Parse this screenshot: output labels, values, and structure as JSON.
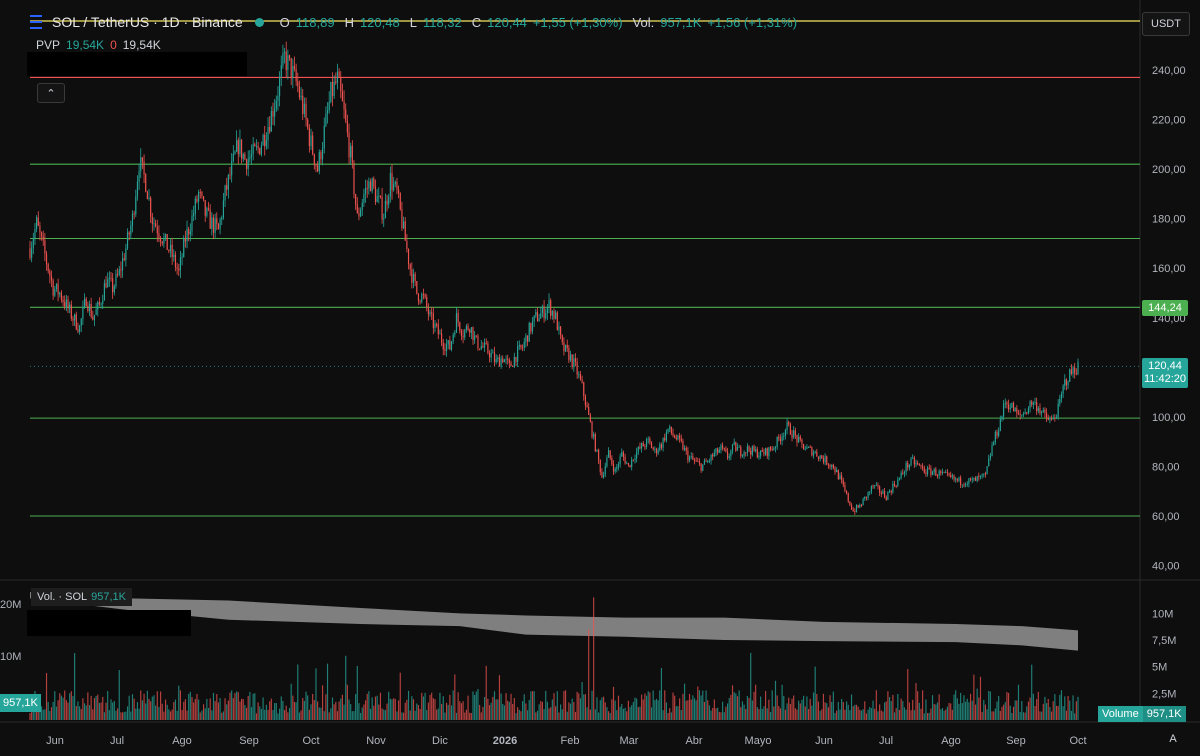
{
  "header": {
    "symbol": "SOL / TetherUS · 1D · Binance",
    "open_label": "O",
    "open": "118,89",
    "high_label": "H",
    "high": "120,48",
    "low_label": "L",
    "low": "118,32",
    "close_label": "C",
    "close": "120,44",
    "change": "+1,55 (+1,30%)",
    "vol_label": "Vol.",
    "vol": "957,1K",
    "vol_change": "+1,56 (+1,31%)",
    "icon": "menu-icon"
  },
  "pvp": {
    "label": "PVP",
    "v1": "19,54K",
    "v2": "0",
    "v3": "19,54K"
  },
  "currency": "USDT",
  "collapse_glyph": "⌃",
  "price_tag": {
    "current": "120,44",
    "countdown": "11:42:20",
    "level": "144,24"
  },
  "volume_pane": {
    "title": "Vol. · SOL",
    "value": "957,1K",
    "left_value": "957,1K",
    "tag_label": "Volume",
    "tag_value": "957,1K",
    "left_axis": [
      "20M",
      "10M"
    ],
    "axis": [
      "10M",
      "7,5M",
      "5M",
      "2,5M"
    ]
  },
  "auto_label": "A",
  "colors": {
    "up": "#26a69a",
    "down": "#ef5350",
    "support": "#4caf50",
    "resistance": "#ef5350",
    "top_line": "#f5e663",
    "ma_band": "#8c8c8c"
  },
  "chart_data": {
    "type": "candlestick",
    "title": "SOL / TetherUS · 1D · Binance",
    "ylim": [
      40,
      250
    ],
    "yticks": [
      240,
      220,
      200,
      180,
      160,
      140,
      100,
      80,
      60,
      40
    ],
    "ytick_labels": [
      "240,00",
      "220,00",
      "200,00",
      "180,00",
      "160,00",
      "140,00",
      "100,00",
      "80,00",
      "60,00",
      "40,00"
    ],
    "xticks": [
      "Jun",
      "Jul",
      "Ago",
      "Sep",
      "Oct",
      "Nov",
      "Dic",
      "2026",
      "Feb",
      "Mar",
      "Abr",
      "Mayo",
      "Jun",
      "Jul",
      "Ago",
      "Sep",
      "Oct"
    ],
    "horizontal_lines": [
      {
        "price": 237,
        "color": "red"
      },
      {
        "price": 202,
        "color": "green"
      },
      {
        "price": 172,
        "color": "green"
      },
      {
        "price": 144.24,
        "color": "green"
      },
      {
        "price": 99.5,
        "color": "green"
      },
      {
        "price": 60,
        "color": "green"
      }
    ],
    "price_path": [
      [
        0,
        168
      ],
      [
        4,
        178
      ],
      [
        8,
        168
      ],
      [
        14,
        152
      ],
      [
        18,
        150
      ],
      [
        22,
        145
      ],
      [
        26,
        140
      ],
      [
        30,
        136
      ],
      [
        34,
        148
      ],
      [
        38,
        140
      ],
      [
        42,
        145
      ],
      [
        46,
        155
      ],
      [
        50,
        152
      ],
      [
        54,
        158
      ],
      [
        58,
        168
      ],
      [
        62,
        180
      ],
      [
        66,
        203
      ],
      [
        70,
        195
      ],
      [
        74,
        180
      ],
      [
        78,
        175
      ],
      [
        82,
        170
      ],
      [
        86,
        165
      ],
      [
        90,
        158
      ],
      [
        94,
        172
      ],
      [
        98,
        180
      ],
      [
        102,
        190
      ],
      [
        106,
        182
      ],
      [
        110,
        178
      ],
      [
        114,
        175
      ],
      [
        118,
        190
      ],
      [
        122,
        200
      ],
      [
        126,
        210
      ],
      [
        130,
        204
      ],
      [
        134,
        205
      ],
      [
        138,
        208
      ],
      [
        142,
        214
      ],
      [
        146,
        222
      ],
      [
        150,
        232
      ],
      [
        154,
        245
      ],
      [
        158,
        240
      ],
      [
        162,
        233
      ],
      [
        166,
        222
      ],
      [
        170,
        210
      ],
      [
        174,
        200
      ],
      [
        178,
        215
      ],
      [
        182,
        230
      ],
      [
        186,
        236
      ],
      [
        190,
        222
      ],
      [
        194,
        205
      ],
      [
        198,
        180
      ],
      [
        202,
        190
      ],
      [
        206,
        195
      ],
      [
        210,
        188
      ],
      [
        214,
        182
      ],
      [
        218,
        196
      ],
      [
        222,
        190
      ],
      [
        226,
        175
      ],
      [
        230,
        160
      ],
      [
        234,
        150
      ],
      [
        238,
        148
      ],
      [
        242,
        140
      ],
      [
        246,
        135
      ],
      [
        250,
        130
      ],
      [
        254,
        128
      ],
      [
        258,
        140
      ],
      [
        262,
        134
      ],
      [
        266,
        137
      ],
      [
        270,
        130
      ],
      [
        274,
        128
      ],
      [
        278,
        126
      ],
      [
        282,
        122
      ],
      [
        286,
        124
      ],
      [
        290,
        120
      ],
      [
        294,
        125
      ],
      [
        298,
        128
      ],
      [
        302,
        135
      ],
      [
        306,
        140
      ],
      [
        310,
        142
      ],
      [
        314,
        145
      ],
      [
        318,
        140
      ],
      [
        322,
        128
      ],
      [
        326,
        125
      ],
      [
        330,
        120
      ],
      [
        334,
        112
      ],
      [
        338,
        100
      ],
      [
        342,
        88
      ],
      [
        346,
        76
      ],
      [
        350,
        85
      ],
      [
        354,
        78
      ],
      [
        358,
        85
      ],
      [
        362,
        80
      ],
      [
        366,
        85
      ],
      [
        370,
        88
      ],
      [
        374,
        90
      ],
      [
        378,
        86
      ],
      [
        382,
        89
      ],
      [
        386,
        95
      ],
      [
        390,
        92
      ],
      [
        394,
        89
      ],
      [
        398,
        84
      ],
      [
        402,
        82
      ],
      [
        406,
        80
      ],
      [
        410,
        82
      ],
      [
        414,
        85
      ],
      [
        418,
        87
      ],
      [
        422,
        84
      ],
      [
        426,
        88
      ],
      [
        430,
        86
      ],
      [
        434,
        87
      ],
      [
        438,
        86
      ],
      [
        442,
        85
      ],
      [
        446,
        86
      ],
      [
        450,
        88
      ],
      [
        454,
        92
      ],
      [
        458,
        96
      ],
      [
        462,
        93
      ],
      [
        466,
        89
      ],
      [
        470,
        87
      ],
      [
        474,
        86
      ],
      [
        478,
        84
      ],
      [
        482,
        82
      ],
      [
        486,
        80
      ],
      [
        490,
        75
      ],
      [
        494,
        68
      ],
      [
        498,
        62
      ],
      [
        502,
        64
      ],
      [
        506,
        68
      ],
      [
        510,
        72
      ],
      [
        514,
        70
      ],
      [
        518,
        68
      ],
      [
        522,
        72
      ],
      [
        526,
        75
      ],
      [
        530,
        80
      ],
      [
        534,
        82
      ],
      [
        538,
        80
      ],
      [
        542,
        78
      ],
      [
        546,
        78
      ],
      [
        550,
        77
      ],
      [
        554,
        76
      ],
      [
        558,
        75
      ],
      [
        562,
        74
      ],
      [
        566,
        74
      ],
      [
        570,
        74
      ],
      [
        574,
        75
      ],
      [
        578,
        76
      ],
      [
        582,
        88
      ],
      [
        586,
        96
      ],
      [
        590,
        106
      ],
      [
        594,
        104
      ],
      [
        598,
        100
      ],
      [
        602,
        102
      ],
      [
        606,
        106
      ],
      [
        610,
        104
      ],
      [
        614,
        100
      ],
      [
        618,
        98
      ],
      [
        622,
        103
      ],
      [
        626,
        114
      ],
      [
        630,
        118
      ],
      [
        634,
        120.44
      ]
    ],
    "path_note_x": "x is trading-day index 0..634; y is price in USDT",
    "volume": {
      "ylim": [
        0,
        12
      ],
      "unit": "M",
      "ma_band_upper": [
        [
          0,
          12
        ],
        [
          60,
          11.4
        ],
        [
          120,
          11.2
        ],
        [
          200,
          10.5
        ],
        [
          260,
          10
        ],
        [
          300,
          9.8
        ],
        [
          360,
          9.6
        ],
        [
          420,
          9.6
        ],
        [
          480,
          9.2
        ],
        [
          560,
          9.0
        ],
        [
          600,
          8.8
        ],
        [
          634,
          8.4
        ]
      ],
      "ma_band_lower": [
        [
          0,
          11.4
        ],
        [
          60,
          10.3
        ],
        [
          120,
          9.4
        ],
        [
          200,
          9.0
        ],
        [
          260,
          8.8
        ],
        [
          300,
          8.0
        ],
        [
          360,
          7.8
        ],
        [
          420,
          7.5
        ],
        [
          480,
          7.4
        ],
        [
          560,
          7.3
        ],
        [
          600,
          7.0
        ],
        [
          634,
          6.5
        ]
      ]
    }
  }
}
